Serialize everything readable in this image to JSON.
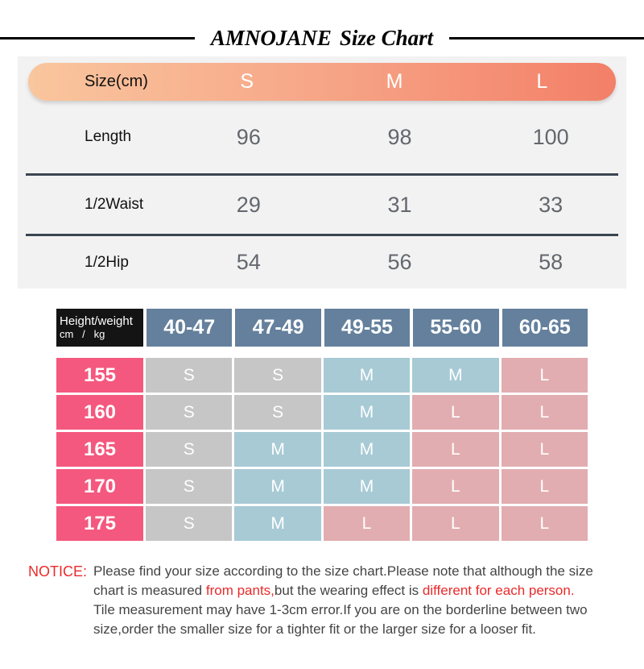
{
  "title": {
    "brand": "AMNOJANE",
    "rest": "Size Chart"
  },
  "size_table": {
    "header_label": "Size(cm)",
    "sizes": [
      "S",
      "M",
      "L"
    ],
    "rows": [
      {
        "label": "Length",
        "values": [
          "96",
          "98",
          "100"
        ]
      },
      {
        "label": "1/2Waist",
        "values": [
          "29",
          "31",
          "33"
        ]
      },
      {
        "label": "1/2Hip",
        "values": [
          "54",
          "56",
          "58"
        ]
      }
    ]
  },
  "fit_table": {
    "corner": {
      "line1": "Height/weight",
      "line2": "cm   /   kg"
    },
    "weights": [
      "40-47",
      "47-49",
      "49-55",
      "55-60",
      "60-65"
    ],
    "rows": [
      {
        "height": "155",
        "cells": [
          {
            "label": "S",
            "variant": "gray"
          },
          {
            "label": "S",
            "variant": "gray"
          },
          {
            "label": "M",
            "variant": "blue"
          },
          {
            "label": "M",
            "variant": "blue"
          },
          {
            "label": "L",
            "variant": "rose"
          }
        ]
      },
      {
        "height": "160",
        "cells": [
          {
            "label": "S",
            "variant": "gray"
          },
          {
            "label": "S",
            "variant": "gray"
          },
          {
            "label": "M",
            "variant": "blue"
          },
          {
            "label": "L",
            "variant": "rose"
          },
          {
            "label": "L",
            "variant": "rose"
          }
        ]
      },
      {
        "height": "165",
        "cells": [
          {
            "label": "S",
            "variant": "gray"
          },
          {
            "label": "M",
            "variant": "blue"
          },
          {
            "label": "M",
            "variant": "blue"
          },
          {
            "label": "L",
            "variant": "rose"
          },
          {
            "label": "L",
            "variant": "rose"
          }
        ]
      },
      {
        "height": "170",
        "cells": [
          {
            "label": "S",
            "variant": "gray"
          },
          {
            "label": "M",
            "variant": "blue"
          },
          {
            "label": "M",
            "variant": "blue"
          },
          {
            "label": "L",
            "variant": "rose"
          },
          {
            "label": "L",
            "variant": "rose"
          }
        ]
      },
      {
        "height": "175",
        "cells": [
          {
            "label": "S",
            "variant": "gray"
          },
          {
            "label": "M",
            "variant": "blue"
          },
          {
            "label": "L",
            "variant": "rose"
          },
          {
            "label": "L",
            "variant": "rose"
          },
          {
            "label": "L",
            "variant": "rose"
          }
        ]
      }
    ]
  },
  "notice": {
    "label": "NOTICE:",
    "lines": [
      [
        {
          "text": "Please find your size according to the size chart.Please note that although the size",
          "red": false
        }
      ],
      [
        {
          "text": "chart is measured ",
          "red": false
        },
        {
          "text": "from pants,",
          "red": true
        },
        {
          "text": "but the wearing effect is ",
          "red": false
        },
        {
          "text": "different for each person.",
          "red": true
        }
      ],
      [
        {
          "text": "Tile measurement may have 1-3cm error.If you are on the borderline between two",
          "red": false
        }
      ],
      [
        {
          "text": "size,order the smaller size for a tighter fit or the larger size for a looser fit.",
          "red": false
        }
      ]
    ]
  },
  "colors": {
    "header_gradient_start": "#f9c69e",
    "header_gradient_end": "#f37f68",
    "panel_background": "#f2f2f2",
    "divider": "#3a4552",
    "value_text": "#63676d",
    "corner_black": "#141414",
    "weight_header_blue": "#64809c",
    "height_pink": "#f4587e",
    "cell_gray": "#c6c6c6",
    "cell_blue": "#a7cad5",
    "cell_rose": "#e2adb0",
    "notice_red": "#ea2a2a"
  },
  "chart_data": [
    {
      "type": "table",
      "title": "AMNOJANE Size Chart",
      "columns": [
        "Size(cm)",
        "S",
        "M",
        "L"
      ],
      "rows": [
        [
          "Length",
          "96",
          "98",
          "100"
        ],
        [
          "1/2Waist",
          "29",
          "31",
          "33"
        ],
        [
          "1/2Hip",
          "54",
          "56",
          "58"
        ]
      ]
    },
    {
      "type": "table",
      "columns": [
        "Height/weight cm / kg",
        "40-47",
        "47-49",
        "49-55",
        "55-60",
        "60-65"
      ],
      "rows": [
        [
          "155",
          "S",
          "S",
          "M",
          "M",
          "L"
        ],
        [
          "160",
          "S",
          "S",
          "M",
          "L",
          "L"
        ],
        [
          "165",
          "S",
          "M",
          "M",
          "L",
          "L"
        ],
        [
          "170",
          "S",
          "M",
          "M",
          "L",
          "L"
        ],
        [
          "175",
          "S",
          "M",
          "L",
          "L",
          "L"
        ]
      ]
    }
  ]
}
